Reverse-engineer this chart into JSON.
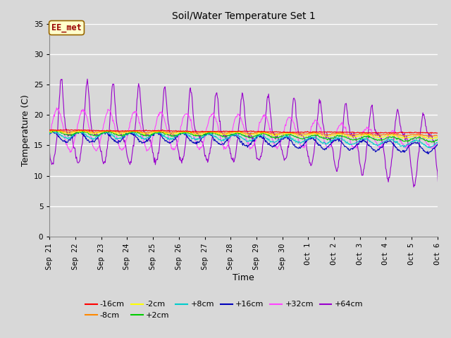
{
  "title": "Soil/Water Temperature Set 1",
  "xlabel": "Time",
  "ylabel": "Temperature (C)",
  "ylim": [
    0,
    35
  ],
  "yticks": [
    0,
    5,
    10,
    15,
    20,
    25,
    30,
    35
  ],
  "fig_bg": "#d8d8d8",
  "plot_bg": "#d8d8d8",
  "annotation_text": "EE_met",
  "annotation_bg": "#ffffcc",
  "annotation_border": "#996600",
  "annotation_text_color": "#990000",
  "series_colors": {
    "-16cm": "#ff0000",
    "-8cm": "#ff8800",
    "-2cm": "#ffff00",
    "+2cm": "#00cc00",
    "+8cm": "#00cccc",
    "+16cm": "#0000bb",
    "+32cm": "#ff44ff",
    "+64cm": "#9900cc"
  },
  "x_tick_labels": [
    "Sep 21",
    "Sep 22",
    "Sep 23",
    "Sep 24",
    "Sep 25",
    "Sep 26",
    "Sep 27",
    "Sep 28",
    "Sep 29",
    "Sep 30",
    "Oct 1",
    "Oct 2",
    "Oct 3",
    "Oct 4",
    "Oct 5",
    "Oct 6"
  ],
  "n_days": 16
}
